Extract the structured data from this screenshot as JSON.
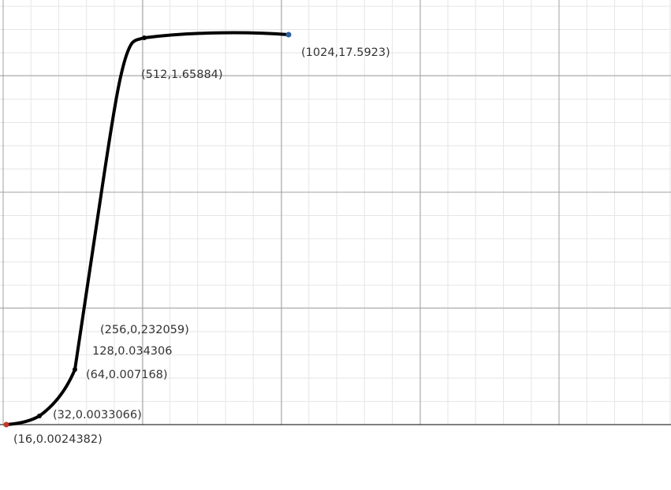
{
  "chart_data": {
    "type": "line",
    "grid": true,
    "x_axis": "unlabeled",
    "y_axis": "unlabeled",
    "series": [
      {
        "points": [
          {
            "label": "(16,0.0024382)",
            "kind": "endpoint"
          },
          {
            "label": "(32,0.0033066)"
          },
          {
            "label": "(64,0.007168)"
          },
          {
            "label": "128,0.034306"
          },
          {
            "label": "(256,0,232059)"
          },
          {
            "label": "(512,1.65884)"
          },
          {
            "label": "(1024,17.5923)",
            "kind": "endpoint"
          }
        ]
      }
    ]
  },
  "colors": {
    "line": "#000000",
    "minor_grid": "#e6e6e6",
    "major_grid": "#a0a0a0",
    "axis": "#555555",
    "label": "#333333",
    "start_point": "#c0392b",
    "end_point": "#2e5e9e"
  }
}
